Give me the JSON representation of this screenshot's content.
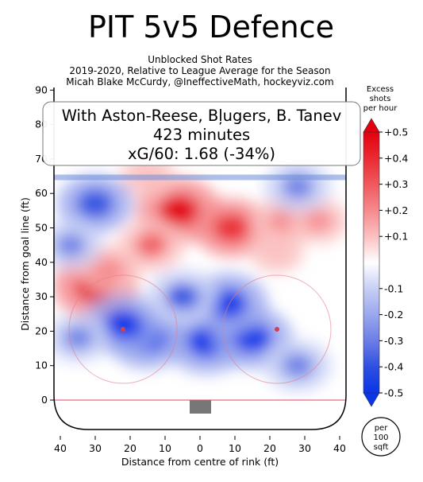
{
  "header": {
    "title": "PIT 5v5 Defence",
    "subtitle_lines": [
      "Unblocked Shot Rates",
      "2019-2020, Relative to League Average for the Season",
      "Micah Blake McCurdy, @IneffectiveMath, hockeyviz.com"
    ]
  },
  "callout": {
    "lines": [
      "With Aston-Reese, Bļugers, B. Tanev",
      "423 minutes",
      "xG/60: 1.68 (-34%)"
    ]
  },
  "colorbar": {
    "title_lines": [
      "Excess",
      "shots",
      "per hour"
    ],
    "tick_labels": [
      "+0.5",
      "+0.4",
      "+0.3",
      "+0.2",
      "+0.1",
      "-0.1",
      "-0.2",
      "-0.3",
      "-0.4",
      "-0.5"
    ],
    "colors": [
      "#e3000e",
      "#ea2a33",
      "#f0585e",
      "#f58a8d",
      "#fbc0c1",
      "#ffffff",
      "#c7cff5",
      "#9aa8ee",
      "#6c7ee6",
      "#2e4fe0",
      "#0a35e8"
    ]
  },
  "units_badge": {
    "lines": [
      "per",
      "100",
      "sqft"
    ]
  },
  "chart_data": {
    "type": "heatmap",
    "xlabel": "Distance from centre of rink (ft)",
    "ylabel": "Distance from goal line (ft)",
    "x_ticks": [
      "40",
      "30",
      "20",
      "10",
      "0",
      "10",
      "20",
      "30",
      "40"
    ],
    "y_ticks": [
      "0",
      "10",
      "20",
      "30",
      "40",
      "50",
      "60",
      "70",
      "80",
      "90"
    ],
    "xlim": [
      -42,
      42
    ],
    "ylim": [
      -10,
      90
    ],
    "value_range": [
      -0.5,
      0.5
    ],
    "hotspots": [
      {
        "x": -30,
        "y": 33,
        "value": 0.5
      },
      {
        "x": -26,
        "y": 38,
        "value": 0.25
      },
      {
        "x": -6,
        "y": 55,
        "value": 0.5
      },
      {
        "x": -14,
        "y": 45,
        "value": 0.3
      },
      {
        "x": 9,
        "y": 50,
        "value": 0.4
      },
      {
        "x": 24,
        "y": 52,
        "value": 0.25
      },
      {
        "x": 34,
        "y": 52,
        "value": 0.2
      },
      {
        "x": -15,
        "y": 65,
        "value": 0.15
      },
      {
        "x": 22,
        "y": 43,
        "value": 0.15
      },
      {
        "x": -30,
        "y": 57,
        "value": -0.4
      },
      {
        "x": -37,
        "y": 45,
        "value": -0.25
      },
      {
        "x": 28,
        "y": 62,
        "value": -0.3
      },
      {
        "x": 2,
        "y": 17,
        "value": -0.5
      },
      {
        "x": -15,
        "y": 18,
        "value": -0.45
      },
      {
        "x": 15,
        "y": 18,
        "value": -0.45
      },
      {
        "x": -22,
        "y": 22,
        "value": -0.45
      },
      {
        "x": 8,
        "y": 28,
        "value": -0.45
      },
      {
        "x": -5,
        "y": 30,
        "value": -0.35
      },
      {
        "x": 28,
        "y": 10,
        "value": -0.3
      },
      {
        "x": -35,
        "y": 18,
        "value": -0.25
      }
    ]
  }
}
